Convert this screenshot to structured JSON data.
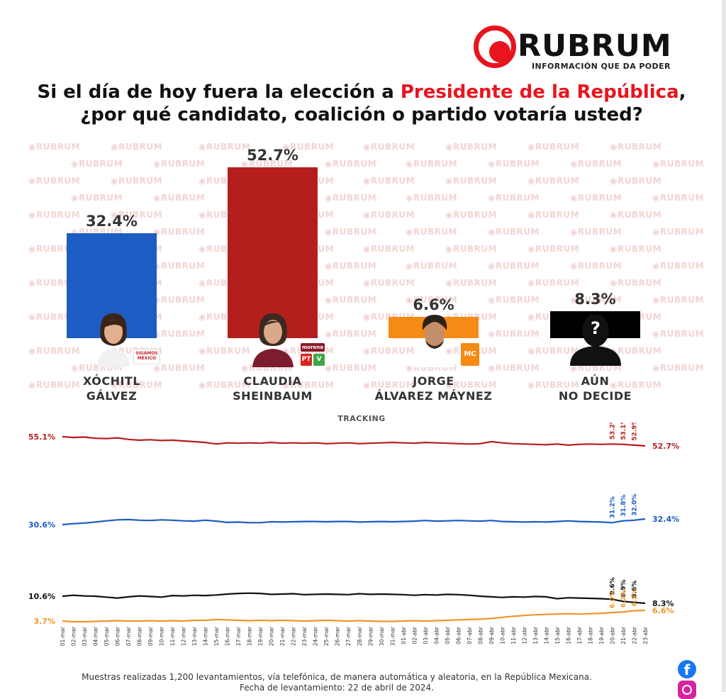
{
  "brand": {
    "name": "RUBRUM",
    "tagline": "INFORMACIÓN QUE DA PODER",
    "accent_color": "#e8151d",
    "watermark_text": "RUBRUM"
  },
  "question": {
    "line1_pre": "Si el día de hoy fuera la elección a ",
    "line1_highlight": "Presidente de la República",
    "line1_post": ",",
    "line2": "¿por qué candidato, coalición o partido votaría usted?"
  },
  "chart_data": [
    {
      "type": "bar",
      "categories": [
        "XÓCHITL GÁLVEZ",
        "CLAUDIA SHEINBAUM",
        "JORGE ÁLVAREZ MÁYNEZ",
        "AÚN NO DECIDE"
      ],
      "name_lines": [
        [
          "XÓCHITL",
          "GÁLVEZ"
        ],
        [
          "CLAUDIA",
          "SHEINBAUM"
        ],
        [
          "JORGE",
          "ÁLVAREZ MÁYNEZ"
        ],
        [
          "AÚN",
          "NO DECIDE"
        ]
      ],
      "values": [
        32.4,
        52.7,
        6.6,
        8.3
      ],
      "value_labels": [
        "32.4%",
        "52.7%",
        "6.6%",
        "8.3%"
      ],
      "colors": [
        "#1d5cc2",
        "#b41f1d",
        "#f58a14",
        "#000000"
      ],
      "ylim": [
        0,
        100
      ],
      "grid": false
    },
    {
      "type": "line",
      "title": "TRACKING",
      "x": [
        "01-mar",
        "02-mar",
        "03-mar",
        "04-mar",
        "05-mar",
        "06-mar",
        "07-mar",
        "08-mar",
        "09-mar",
        "10-mar",
        "11-mar",
        "12-mar",
        "13-mar",
        "14-mar",
        "15-mar",
        "16-mar",
        "17-mar",
        "18-mar",
        "19-mar",
        "20-mar",
        "21-mar",
        "22-mar",
        "23-mar",
        "24-mar",
        "25-mar",
        "26-mar",
        "27-mar",
        "28-mar",
        "29-mar",
        "30-mar",
        "31-mar",
        "01-abr",
        "02-abr",
        "03-abr",
        "04-abr",
        "05-abr",
        "06-abr",
        "07-abr",
        "08-abr",
        "09-abr",
        "10-abr",
        "11-abr",
        "12-abr",
        "13-abr",
        "14-abr",
        "15-abr",
        "16-abr",
        "17-abr",
        "18-abr",
        "19-abr",
        "20-abr",
        "21-abr",
        "22-abr",
        "23-abr"
      ],
      "series": [
        {
          "name": "CLAUDIA SHEINBAUM",
          "color": "#b41f1d",
          "values": [
            55.1,
            54.9,
            55.0,
            54.7,
            54.6,
            54.8,
            54.4,
            54.2,
            54.3,
            54.1,
            54.2,
            54.0,
            53.8,
            53.6,
            53.2,
            53.5,
            53.4,
            53.5,
            53.4,
            53.6,
            53.4,
            53.5,
            53.4,
            53.5,
            53.3,
            53.4,
            53.5,
            53.3,
            53.4,
            53.5,
            53.6,
            53.5,
            53.4,
            53.6,
            53.5,
            53.4,
            53.3,
            53.2,
            53.3,
            53.8,
            53.5,
            53.3,
            53.2,
            53.1,
            53.0,
            53.2,
            52.9,
            53.1,
            53.2,
            53.1,
            53.2,
            53.1,
            52.9,
            52.7
          ],
          "start_label": "55.1%",
          "end_label": "52.7%",
          "point_labels": [
            {
              "x": "20-abr",
              "label": "53.2%"
            },
            {
              "x": "21-abr",
              "label": "53.1%"
            },
            {
              "x": "22-abr",
              "label": "52.9%"
            }
          ]
        },
        {
          "name": "XÓCHITL GÁLVEZ",
          "color": "#1d5cc2",
          "values": [
            30.6,
            30.9,
            31.1,
            31.4,
            31.8,
            32.1,
            32.2,
            32.0,
            31.9,
            32.1,
            32.0,
            31.8,
            31.7,
            32.0,
            31.7,
            31.3,
            31.4,
            31.2,
            31.2,
            31.5,
            31.4,
            31.5,
            31.6,
            31.6,
            31.5,
            31.6,
            31.6,
            31.4,
            31.5,
            31.6,
            31.5,
            31.6,
            31.7,
            31.9,
            31.7,
            31.8,
            31.9,
            31.8,
            31.7,
            31.9,
            31.6,
            31.5,
            31.4,
            31.5,
            31.4,
            31.6,
            31.8,
            31.6,
            31.5,
            31.4,
            31.2,
            31.8,
            32.0,
            32.4
          ],
          "start_label": "30.6%",
          "end_label": "32.4%",
          "point_labels": [
            {
              "x": "20-abr",
              "label": "31.2%"
            },
            {
              "x": "21-abr",
              "label": "31.8%"
            },
            {
              "x": "22-abr",
              "label": "32.0%"
            }
          ]
        },
        {
          "name": "AÚN NO DECIDE",
          "color": "#111111",
          "values": [
            10.6,
            10.9,
            10.7,
            10.6,
            10.3,
            10.0,
            10.4,
            10.7,
            10.5,
            10.3,
            10.8,
            10.7,
            10.9,
            10.8,
            11.0,
            11.3,
            11.5,
            11.6,
            11.5,
            11.2,
            11.3,
            11.4,
            11.1,
            11.2,
            11.3,
            11.2,
            11.1,
            11.4,
            11.2,
            11.3,
            11.2,
            11.1,
            10.9,
            11.1,
            11.0,
            11.2,
            11.1,
            10.9,
            10.6,
            10.4,
            10.2,
            10.4,
            10.3,
            10.5,
            10.4,
            9.8,
            10.1,
            10.0,
            9.9,
            9.8,
            9.6,
            8.9,
            8.6,
            8.3
          ],
          "start_label": "10.6%",
          "end_label": "8.3%",
          "point_labels": [
            {
              "x": "20-abr",
              "label": "9.6%"
            },
            {
              "x": "21-abr",
              "label": "8.9%"
            },
            {
              "x": "22-abr",
              "label": "8.6%"
            }
          ]
        },
        {
          "name": "JORGE ÁLVAREZ MÁYNEZ",
          "color": "#f0962a",
          "values": [
            3.7,
            3.5,
            3.5,
            3.6,
            3.7,
            3.8,
            3.7,
            3.7,
            3.8,
            3.7,
            3.8,
            3.7,
            3.9,
            3.9,
            4.1,
            4.0,
            3.9,
            3.8,
            3.9,
            3.8,
            3.9,
            3.8,
            3.7,
            3.8,
            3.9,
            3.8,
            3.7,
            3.8,
            3.7,
            3.6,
            3.6,
            3.7,
            3.8,
            3.7,
            3.8,
            3.9,
            4.0,
            4.1,
            4.2,
            4.4,
            4.7,
            5.0,
            5.2,
            5.4,
            5.5,
            5.6,
            5.7,
            5.6,
            5.7,
            5.8,
            6.0,
            6.2,
            6.5,
            6.6
          ],
          "start_label": "3.7%",
          "end_label": "6.6%",
          "point_labels": [
            {
              "x": "20-abr",
              "label": "6.0%"
            },
            {
              "x": "21-abr",
              "label": "6.2%"
            },
            {
              "x": "22-abr",
              "label": "6.5%"
            }
          ]
        }
      ]
    }
  ],
  "candidates": {
    "galvez_badge": "SIGAMOS MÉXICO",
    "sheinbaum_badges": [
      "morena",
      "PT",
      "V"
    ],
    "maynez_badge": "MC",
    "undecided_symbol": "?"
  },
  "footer": {
    "line1": "Muestras realizadas 1,200 levantamientos, vía telefónica, de manera automática y aleatoria, en la República Mexicana.",
    "line2": "Fecha de levantamiento: 22 de abril de 2024."
  },
  "social": {
    "facebook_icon": "facebook-icon",
    "instagram_icon": "instagram-icon",
    "facebook_glyph": "f"
  }
}
